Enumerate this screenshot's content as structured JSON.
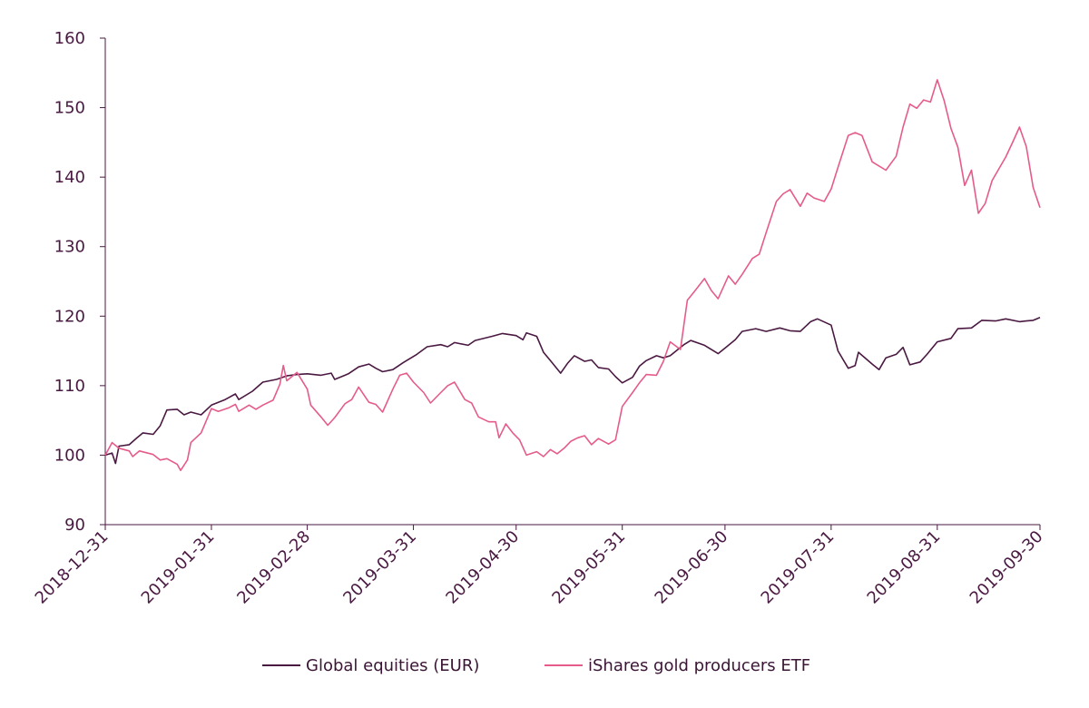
{
  "chart_data": {
    "type": "line",
    "title": "",
    "xlabel": "",
    "ylabel": "",
    "ylim": [
      90,
      160
    ],
    "yticks": [
      90,
      100,
      110,
      120,
      130,
      140,
      150,
      160
    ],
    "xlim": [
      "2018-12-31",
      "2019-09-30"
    ],
    "xticks": [
      "2018-12-31",
      "2019-01-31",
      "2019-02-28",
      "2019-03-31",
      "2019-04-30",
      "2019-05-31",
      "2019-06-30",
      "2019-07-31",
      "2019-08-31",
      "2019-09-30"
    ],
    "grid": false,
    "legend": "bottom",
    "series": [
      {
        "name": "Global equities (EUR)",
        "color": "#4a1942",
        "points": [
          [
            "2018-12-31",
            100.0
          ],
          [
            "2019-01-02",
            100.3
          ],
          [
            "2019-01-03",
            98.8
          ],
          [
            "2019-01-04",
            101.3
          ],
          [
            "2019-01-07",
            101.5
          ],
          [
            "2019-01-09",
            102.4
          ],
          [
            "2019-01-11",
            103.2
          ],
          [
            "2019-01-14",
            103.0
          ],
          [
            "2019-01-16",
            104.2
          ],
          [
            "2019-01-18",
            106.5
          ],
          [
            "2019-01-21",
            106.6
          ],
          [
            "2019-01-23",
            105.8
          ],
          [
            "2019-01-25",
            106.2
          ],
          [
            "2019-01-28",
            105.8
          ],
          [
            "2019-01-31",
            107.2
          ],
          [
            "2019-02-04",
            108.0
          ],
          [
            "2019-02-07",
            108.8
          ],
          [
            "2019-02-08",
            108.0
          ],
          [
            "2019-02-12",
            109.2
          ],
          [
            "2019-02-15",
            110.5
          ],
          [
            "2019-02-19",
            110.9
          ],
          [
            "2019-02-22",
            111.4
          ],
          [
            "2019-02-25",
            111.6
          ],
          [
            "2019-02-28",
            111.7
          ],
          [
            "2019-03-04",
            111.5
          ],
          [
            "2019-03-07",
            111.8
          ],
          [
            "2019-03-08",
            110.9
          ],
          [
            "2019-03-12",
            111.7
          ],
          [
            "2019-03-15",
            112.7
          ],
          [
            "2019-03-18",
            113.1
          ],
          [
            "2019-03-20",
            112.5
          ],
          [
            "2019-03-22",
            112.0
          ],
          [
            "2019-03-25",
            112.3
          ],
          [
            "2019-03-28",
            113.3
          ],
          [
            "2019-04-01",
            114.5
          ],
          [
            "2019-04-04",
            115.6
          ],
          [
            "2019-04-08",
            115.9
          ],
          [
            "2019-04-10",
            115.6
          ],
          [
            "2019-04-12",
            116.2
          ],
          [
            "2019-04-16",
            115.8
          ],
          [
            "2019-04-18",
            116.5
          ],
          [
            "2019-04-23",
            117.1
          ],
          [
            "2019-04-26",
            117.5
          ],
          [
            "2019-04-30",
            117.2
          ],
          [
            "2019-05-02",
            116.6
          ],
          [
            "2019-05-03",
            117.6
          ],
          [
            "2019-05-06",
            117.1
          ],
          [
            "2019-05-08",
            114.8
          ],
          [
            "2019-05-10",
            113.6
          ],
          [
            "2019-05-13",
            111.8
          ],
          [
            "2019-05-15",
            113.2
          ],
          [
            "2019-05-17",
            114.3
          ],
          [
            "2019-05-20",
            113.5
          ],
          [
            "2019-05-22",
            113.7
          ],
          [
            "2019-05-24",
            112.6
          ],
          [
            "2019-05-27",
            112.4
          ],
          [
            "2019-05-29",
            111.3
          ],
          [
            "2019-05-31",
            110.4
          ],
          [
            "2019-06-03",
            111.2
          ],
          [
            "2019-06-05",
            112.8
          ],
          [
            "2019-06-07",
            113.6
          ],
          [
            "2019-06-10",
            114.3
          ],
          [
            "2019-06-12",
            114.0
          ],
          [
            "2019-06-14",
            114.3
          ],
          [
            "2019-06-18",
            115.9
          ],
          [
            "2019-06-20",
            116.5
          ],
          [
            "2019-06-24",
            115.8
          ],
          [
            "2019-06-28",
            114.6
          ],
          [
            "2019-06-30",
            115.4
          ],
          [
            "2019-07-03",
            116.6
          ],
          [
            "2019-07-05",
            117.8
          ],
          [
            "2019-07-09",
            118.2
          ],
          [
            "2019-07-12",
            117.8
          ],
          [
            "2019-07-16",
            118.3
          ],
          [
            "2019-07-19",
            117.9
          ],
          [
            "2019-07-22",
            117.8
          ],
          [
            "2019-07-25",
            119.2
          ],
          [
            "2019-07-27",
            119.6
          ],
          [
            "2019-07-31",
            118.7
          ],
          [
            "2019-08-02",
            115.0
          ],
          [
            "2019-08-05",
            112.5
          ],
          [
            "2019-08-07",
            112.9
          ],
          [
            "2019-08-08",
            114.8
          ],
          [
            "2019-08-12",
            113.1
          ],
          [
            "2019-08-14",
            112.3
          ],
          [
            "2019-08-16",
            114.0
          ],
          [
            "2019-08-19",
            114.5
          ],
          [
            "2019-08-21",
            115.5
          ],
          [
            "2019-08-23",
            113.0
          ],
          [
            "2019-08-26",
            113.4
          ],
          [
            "2019-08-28",
            114.5
          ],
          [
            "2019-08-31",
            116.3
          ],
          [
            "2019-09-04",
            116.8
          ],
          [
            "2019-09-06",
            118.2
          ],
          [
            "2019-09-10",
            118.3
          ],
          [
            "2019-09-13",
            119.4
          ],
          [
            "2019-09-17",
            119.3
          ],
          [
            "2019-09-20",
            119.6
          ],
          [
            "2019-09-24",
            119.2
          ],
          [
            "2019-09-26",
            119.3
          ],
          [
            "2019-09-28",
            119.4
          ],
          [
            "2019-09-30",
            119.8
          ]
        ]
      },
      {
        "name": "iShares gold producers ETF",
        "color": "#e55c8a",
        "points": [
          [
            "2018-12-31",
            100.0
          ],
          [
            "2019-01-02",
            101.8
          ],
          [
            "2019-01-04",
            101.0
          ],
          [
            "2019-01-07",
            100.6
          ],
          [
            "2019-01-08",
            99.8
          ],
          [
            "2019-01-10",
            100.6
          ],
          [
            "2019-01-14",
            100.1
          ],
          [
            "2019-01-16",
            99.3
          ],
          [
            "2019-01-18",
            99.5
          ],
          [
            "2019-01-21",
            98.7
          ],
          [
            "2019-01-22",
            97.8
          ],
          [
            "2019-01-24",
            99.3
          ],
          [
            "2019-01-25",
            101.8
          ],
          [
            "2019-01-28",
            103.2
          ],
          [
            "2019-01-31",
            106.7
          ],
          [
            "2019-02-02",
            106.3
          ],
          [
            "2019-02-05",
            106.8
          ],
          [
            "2019-02-07",
            107.3
          ],
          [
            "2019-02-08",
            106.3
          ],
          [
            "2019-02-11",
            107.2
          ],
          [
            "2019-02-13",
            106.6
          ],
          [
            "2019-02-15",
            107.2
          ],
          [
            "2019-02-18",
            107.9
          ],
          [
            "2019-02-20",
            110.2
          ],
          [
            "2019-02-21",
            112.9
          ],
          [
            "2019-02-22",
            110.7
          ],
          [
            "2019-02-25",
            111.9
          ],
          [
            "2019-02-28",
            109.5
          ],
          [
            "2019-03-01",
            107.2
          ],
          [
            "2019-03-04",
            105.5
          ],
          [
            "2019-03-06",
            104.3
          ],
          [
            "2019-03-08",
            105.4
          ],
          [
            "2019-03-11",
            107.4
          ],
          [
            "2019-03-13",
            108.0
          ],
          [
            "2019-03-15",
            109.8
          ],
          [
            "2019-03-18",
            107.6
          ],
          [
            "2019-03-20",
            107.3
          ],
          [
            "2019-03-22",
            106.2
          ],
          [
            "2019-03-25",
            109.5
          ],
          [
            "2019-03-27",
            111.5
          ],
          [
            "2019-03-29",
            111.8
          ],
          [
            "2019-03-31",
            110.5
          ],
          [
            "2019-04-03",
            109.0
          ],
          [
            "2019-04-05",
            107.5
          ],
          [
            "2019-04-08",
            109.0
          ],
          [
            "2019-04-10",
            110.0
          ],
          [
            "2019-04-12",
            110.5
          ],
          [
            "2019-04-15",
            108.0
          ],
          [
            "2019-04-17",
            107.5
          ],
          [
            "2019-04-19",
            105.5
          ],
          [
            "2019-04-22",
            104.8
          ],
          [
            "2019-04-24",
            104.8
          ],
          [
            "2019-04-25",
            102.5
          ],
          [
            "2019-04-27",
            104.5
          ],
          [
            "2019-04-29",
            103.2
          ],
          [
            "2019-05-01",
            102.2
          ],
          [
            "2019-05-03",
            100.0
          ],
          [
            "2019-05-06",
            100.5
          ],
          [
            "2019-05-08",
            99.8
          ],
          [
            "2019-05-10",
            100.8
          ],
          [
            "2019-05-12",
            100.2
          ],
          [
            "2019-05-14",
            101.0
          ],
          [
            "2019-05-16",
            102.0
          ],
          [
            "2019-05-18",
            102.5
          ],
          [
            "2019-05-20",
            102.8
          ],
          [
            "2019-05-22",
            101.5
          ],
          [
            "2019-05-24",
            102.4
          ],
          [
            "2019-05-27",
            101.6
          ],
          [
            "2019-05-29",
            102.2
          ],
          [
            "2019-05-31",
            107.0
          ],
          [
            "2019-06-03",
            109.0
          ],
          [
            "2019-06-05",
            110.4
          ],
          [
            "2019-06-07",
            111.6
          ],
          [
            "2019-06-10",
            111.5
          ],
          [
            "2019-06-12",
            113.5
          ],
          [
            "2019-06-14",
            116.3
          ],
          [
            "2019-06-17",
            115.2
          ],
          [
            "2019-06-19",
            122.3
          ],
          [
            "2019-06-21",
            123.5
          ],
          [
            "2019-06-24",
            125.4
          ],
          [
            "2019-06-26",
            123.7
          ],
          [
            "2019-06-28",
            122.5
          ],
          [
            "2019-07-01",
            125.8
          ],
          [
            "2019-07-03",
            124.6
          ],
          [
            "2019-07-05",
            126.0
          ],
          [
            "2019-07-08",
            128.3
          ],
          [
            "2019-07-10",
            128.9
          ],
          [
            "2019-07-12",
            132.0
          ],
          [
            "2019-07-15",
            136.5
          ],
          [
            "2019-07-17",
            137.6
          ],
          [
            "2019-07-19",
            138.2
          ],
          [
            "2019-07-22",
            135.8
          ],
          [
            "2019-07-24",
            137.7
          ],
          [
            "2019-07-26",
            137.0
          ],
          [
            "2019-07-29",
            136.5
          ],
          [
            "2019-07-31",
            138.3
          ],
          [
            "2019-08-02",
            141.4
          ],
          [
            "2019-08-05",
            146.0
          ],
          [
            "2019-08-07",
            146.4
          ],
          [
            "2019-08-09",
            146.0
          ],
          [
            "2019-08-12",
            142.2
          ],
          [
            "2019-08-14",
            141.6
          ],
          [
            "2019-08-16",
            141.0
          ],
          [
            "2019-08-19",
            143.0
          ],
          [
            "2019-08-21",
            147.2
          ],
          [
            "2019-08-23",
            150.5
          ],
          [
            "2019-08-25",
            149.9
          ],
          [
            "2019-08-27",
            151.1
          ],
          [
            "2019-08-29",
            150.8
          ],
          [
            "2019-08-31",
            154.0
          ],
          [
            "2019-09-02",
            151.0
          ],
          [
            "2019-09-04",
            147.0
          ],
          [
            "2019-09-06",
            144.3
          ],
          [
            "2019-09-08",
            138.8
          ],
          [
            "2019-09-10",
            141.0
          ],
          [
            "2019-09-12",
            134.8
          ],
          [
            "2019-09-14",
            136.2
          ],
          [
            "2019-09-16",
            139.5
          ],
          [
            "2019-09-18",
            141.2
          ],
          [
            "2019-09-20",
            142.9
          ],
          [
            "2019-09-22",
            145.0
          ],
          [
            "2019-09-24",
            147.2
          ],
          [
            "2019-09-26",
            144.4
          ],
          [
            "2019-09-28",
            138.5
          ],
          [
            "2019-09-30",
            135.6
          ]
        ]
      }
    ]
  }
}
